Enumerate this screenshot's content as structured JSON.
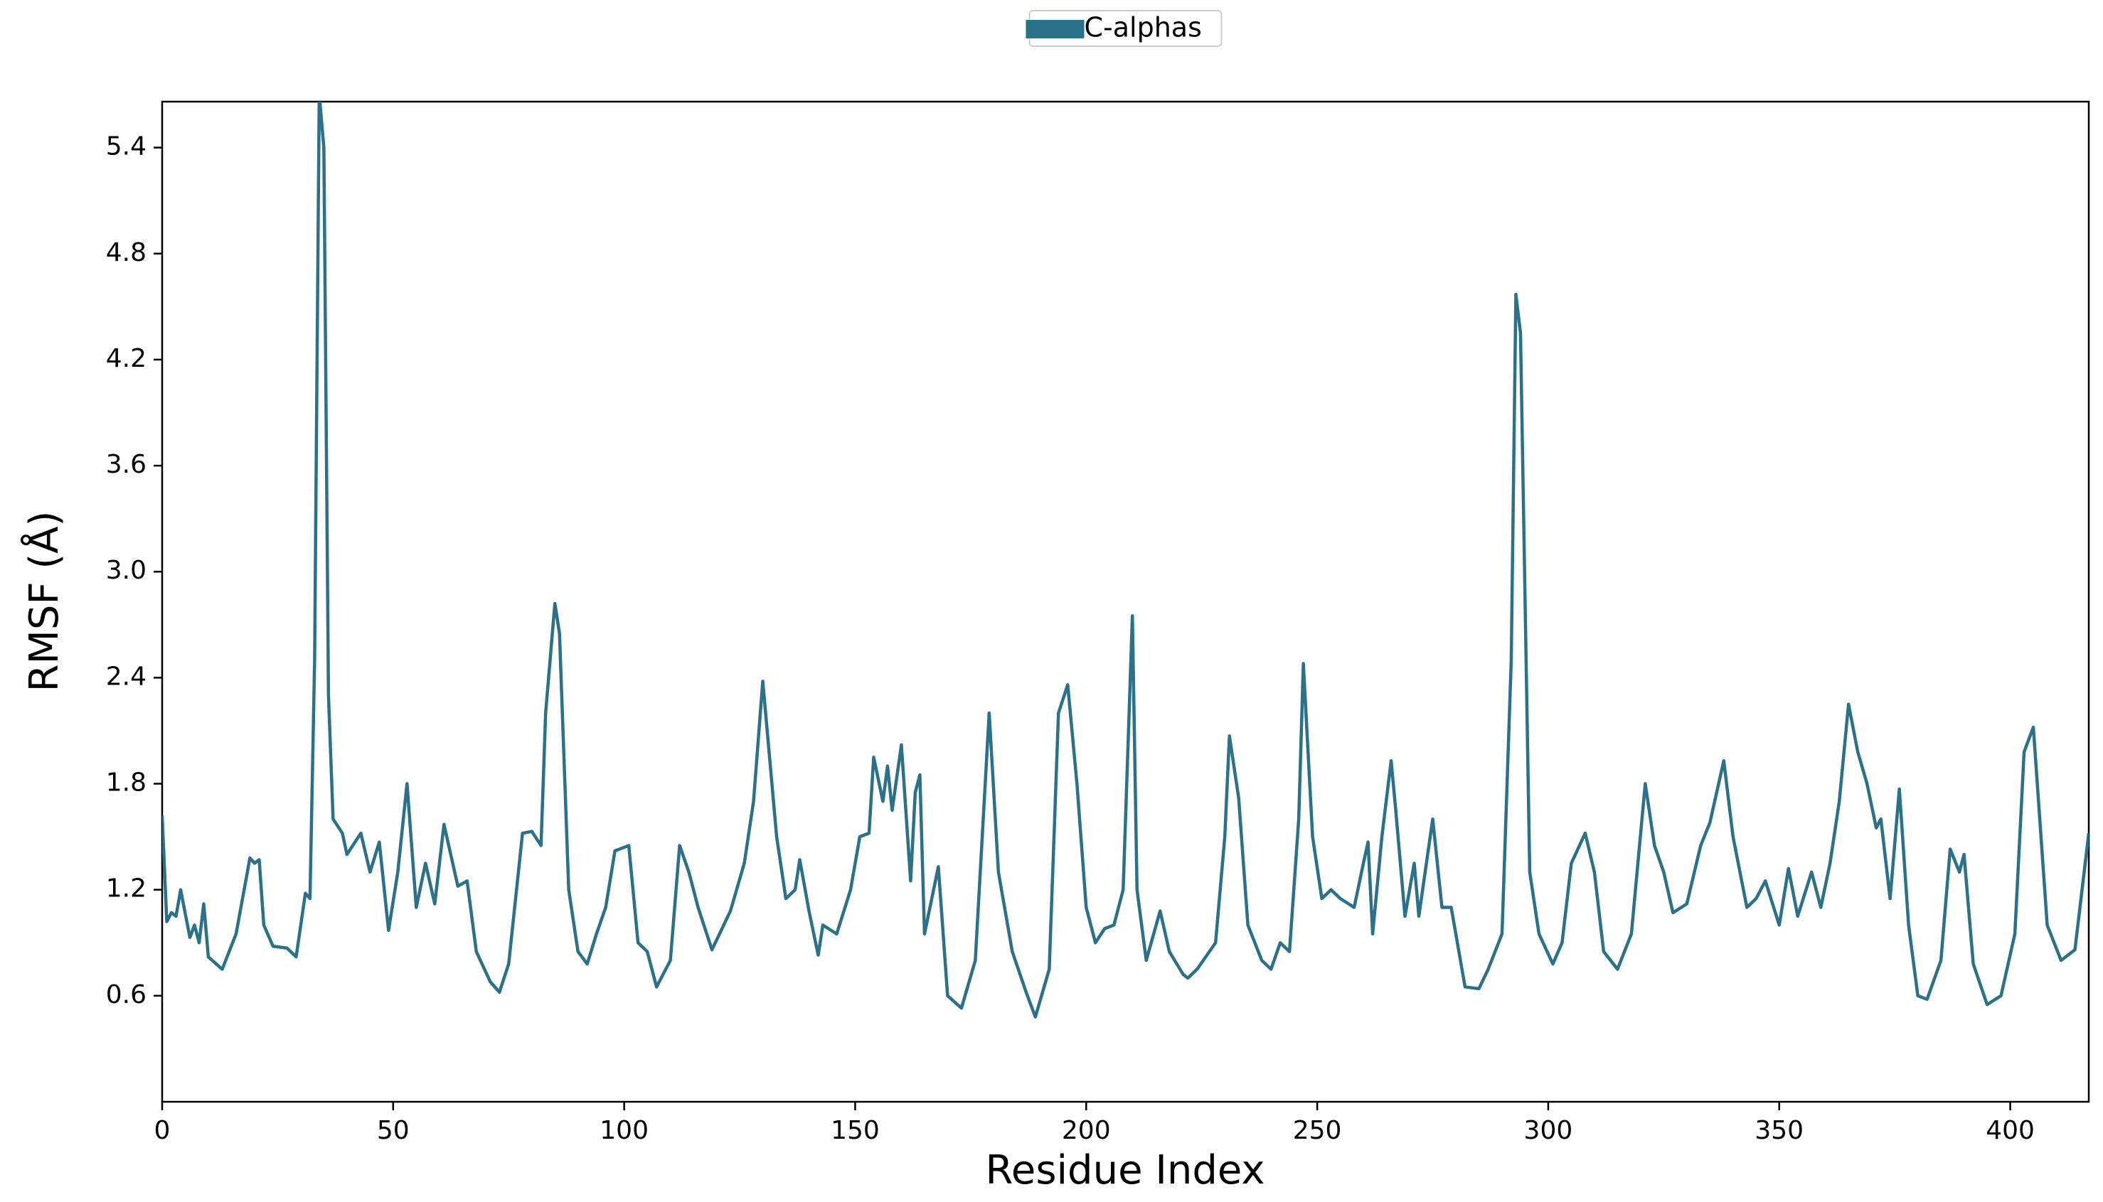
{
  "chart_data": {
    "type": "line",
    "x_label": "Residue Index",
    "y_label": "RMSF (Å)",
    "x": [
      0,
      1,
      2,
      3,
      4,
      6,
      7,
      8,
      9,
      10,
      13,
      16,
      19,
      20,
      21,
      22,
      24,
      27,
      29,
      31,
      32,
      33,
      34,
      35,
      36,
      37,
      39,
      40,
      43,
      45,
      47,
      49,
      51,
      53,
      55,
      57,
      59,
      61,
      64,
      66,
      68,
      71,
      73,
      75,
      78,
      80,
      82,
      83,
      85,
      86,
      88,
      90,
      92,
      94,
      96,
      98,
      101,
      103,
      105,
      107,
      110,
      112,
      114,
      116,
      119,
      123,
      126,
      128,
      130,
      133,
      135,
      137,
      138,
      140,
      142,
      143,
      146,
      149,
      151,
      153,
      154,
      156,
      157,
      158,
      160,
      162,
      163,
      164,
      165,
      168,
      170,
      173,
      176,
      179,
      181,
      184,
      187,
      189,
      192,
      194,
      196,
      198,
      200,
      202,
      204,
      206,
      208,
      210,
      211,
      213,
      216,
      218,
      221,
      222,
      224,
      228,
      230,
      231,
      233,
      235,
      238,
      240,
      242,
      244,
      246,
      247,
      249,
      251,
      253,
      255,
      258,
      260,
      261,
      262,
      264,
      266,
      267,
      269,
      271,
      272,
      275,
      277,
      279,
      282,
      285,
      287,
      290,
      292,
      293,
      294,
      296,
      298,
      301,
      303,
      305,
      308,
      310,
      312,
      315,
      318,
      321,
      323,
      325,
      327,
      330,
      333,
      335,
      338,
      340,
      343,
      345,
      347,
      350,
      352,
      354,
      357,
      359,
      361,
      363,
      365,
      367,
      369,
      371,
      372,
      374,
      376,
      378,
      380,
      382,
      385,
      387,
      389,
      390,
      392,
      395,
      398,
      401,
      403,
      405,
      408,
      411,
      414,
      417
    ],
    "series": [
      {
        "name": "C-alphas",
        "color": "#2a7189",
        "values": [
          1.62,
          1.02,
          1.07,
          1.05,
          1.2,
          0.93,
          1.0,
          0.9,
          1.12,
          0.82,
          0.75,
          0.95,
          1.38,
          1.35,
          1.37,
          1.0,
          0.88,
          0.87,
          0.82,
          1.18,
          1.15,
          2.5,
          5.7,
          5.4,
          2.3,
          1.6,
          1.52,
          1.4,
          1.52,
          1.3,
          1.47,
          0.97,
          1.3,
          1.8,
          1.1,
          1.35,
          1.12,
          1.57,
          1.22,
          1.25,
          0.85,
          0.68,
          0.62,
          0.78,
          1.52,
          1.53,
          1.45,
          2.2,
          2.82,
          2.65,
          1.2,
          0.85,
          0.78,
          0.95,
          1.1,
          1.42,
          1.45,
          0.9,
          0.85,
          0.65,
          0.8,
          1.45,
          1.3,
          1.1,
          0.86,
          1.08,
          1.35,
          1.7,
          2.38,
          1.5,
          1.15,
          1.2,
          1.37,
          1.08,
          0.83,
          1.0,
          0.95,
          1.2,
          1.5,
          1.52,
          1.95,
          1.7,
          1.9,
          1.65,
          2.02,
          1.25,
          1.75,
          1.85,
          0.95,
          1.33,
          0.6,
          0.53,
          0.8,
          2.2,
          1.3,
          0.85,
          0.62,
          0.48,
          0.75,
          2.2,
          2.36,
          1.8,
          1.1,
          0.9,
          0.98,
          1.0,
          1.2,
          2.75,
          1.2,
          0.8,
          1.08,
          0.85,
          0.72,
          0.7,
          0.75,
          0.9,
          1.5,
          2.07,
          1.72,
          1.0,
          0.8,
          0.75,
          0.9,
          0.85,
          1.6,
          2.48,
          1.5,
          1.15,
          1.2,
          1.15,
          1.1,
          1.35,
          1.47,
          0.95,
          1.5,
          1.93,
          1.65,
          1.05,
          1.35,
          1.05,
          1.6,
          1.1,
          1.1,
          0.65,
          0.64,
          0.75,
          0.95,
          2.5,
          4.57,
          4.35,
          1.3,
          0.95,
          0.78,
          0.9,
          1.35,
          1.52,
          1.3,
          0.85,
          0.75,
          0.95,
          1.8,
          1.45,
          1.3,
          1.07,
          1.12,
          1.45,
          1.58,
          1.93,
          1.5,
          1.1,
          1.15,
          1.25,
          1.0,
          1.32,
          1.05,
          1.3,
          1.1,
          1.35,
          1.7,
          2.25,
          1.98,
          1.8,
          1.55,
          1.6,
          1.15,
          1.77,
          1.0,
          0.6,
          0.58,
          0.8,
          1.43,
          1.3,
          1.4,
          0.78,
          0.55,
          0.6,
          0.95,
          1.98,
          2.12,
          1.0,
          0.8,
          0.86,
          1.52
        ]
      }
    ],
    "xlim": [
      0,
      417
    ],
    "ylim": [
      0,
      5.66
    ],
    "xticks": [
      0,
      50,
      100,
      150,
      200,
      250,
      300,
      350,
      400
    ],
    "yticks": [
      0.6,
      1.2,
      1.8,
      2.4,
      {
        "value": 3,
        "label": "3.0"
      },
      3.6,
      4.2,
      4.8,
      5.4
    ],
    "grid": false,
    "legend": "upper center"
  }
}
